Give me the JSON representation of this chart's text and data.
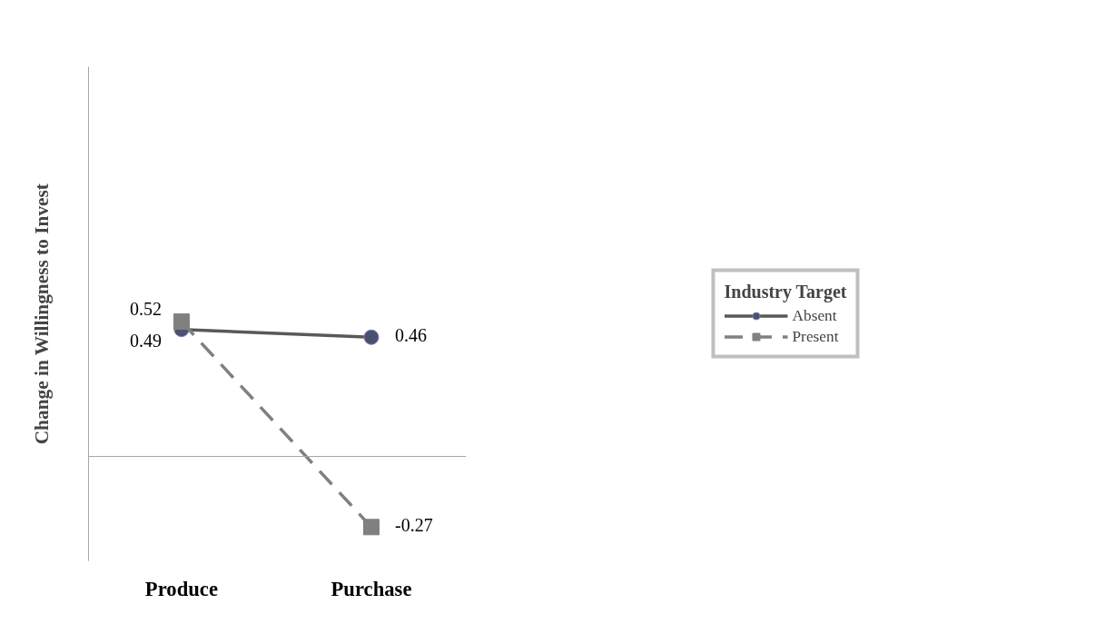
{
  "chart_data": {
    "type": "line",
    "categories": [
      "Produce",
      "Purchase"
    ],
    "ylabel": "Change in Willingness to Invest",
    "legend_title": "Industry Target",
    "ylim": [
      -0.4,
      1.5
    ],
    "series": [
      {
        "name": "Absent",
        "color": "#595959",
        "values": [
          0.49,
          0.46
        ],
        "marker": "circle",
        "line_style": "solid"
      },
      {
        "name": "Present",
        "color": "#808080",
        "values": [
          0.52,
          -0.27
        ],
        "marker": "square",
        "line_style": "dashed"
      }
    ],
    "data_labels": true,
    "legend": "right",
    "grid": false,
    "tick_labels": "x"
  }
}
